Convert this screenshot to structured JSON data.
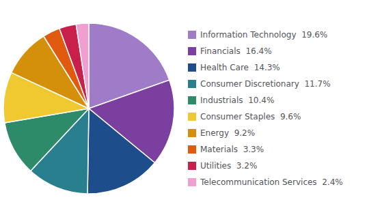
{
  "chart_data": {
    "type": "pie",
    "categories": [
      "Information Technology  19.6%",
      "Financials  16.4%",
      "Health Care  14.3%",
      "Consumer Discretionary  11.7%",
      "Industrials  10.4%",
      "Consumer Staples  9.6%",
      "Energy  9.2%",
      "Materials  3.3%",
      "Utilities  3.2%",
      "Telecommunication Services  2.4%"
    ],
    "values": [
      19.6,
      16.4,
      14.3,
      11.7,
      10.4,
      9.6,
      9.2,
      3.3,
      3.2,
      2.4
    ],
    "colors": [
      "#a07bc8",
      "#7b3fa0",
      "#1e4d8c",
      "#2a7f8f",
      "#2e8b6a",
      "#f0c830",
      "#d4900a",
      "#e05a10",
      "#c8204a",
      "#f0a0d0"
    ],
    "legend": "right"
  }
}
